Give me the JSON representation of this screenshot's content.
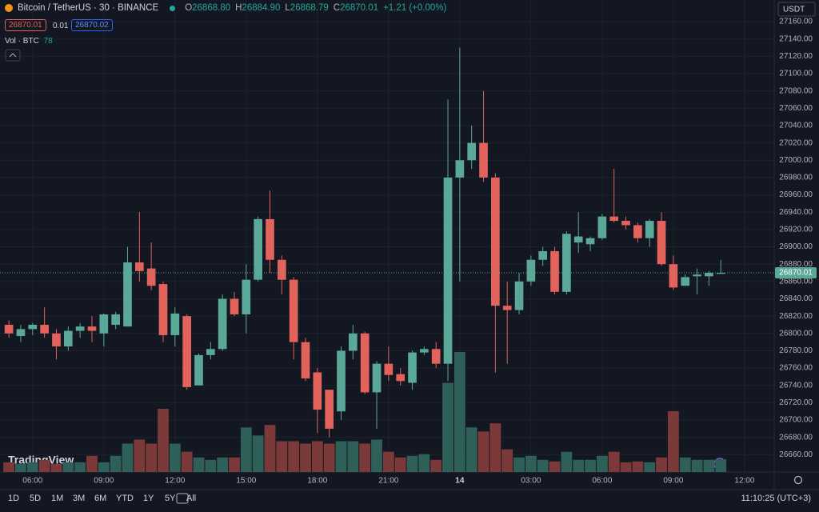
{
  "chart_data": {
    "type": "candlestick",
    "title": "Bitcoin / TetherUS · 30 · BINANCE",
    "legend": [
      {
        "key": "O",
        "value": "26868.80"
      },
      {
        "key": "H",
        "value": "26884.90"
      },
      {
        "key": "L",
        "value": "26868.79"
      },
      {
        "key": "C",
        "value": "26870.01"
      }
    ],
    "change": "+1.21 (+0.00%)",
    "bid": "26870.01",
    "spread": "0.01",
    "ask": "26870.02",
    "volume_label": "Vol · BTC",
    "volume_last": "78",
    "currency": "USDT",
    "price_label": "26870.01",
    "watermark": "TradingView",
    "ranges": [
      "1D",
      "5D",
      "1M",
      "3M",
      "6M",
      "YTD",
      "1Y",
      "5Y",
      "All"
    ],
    "clock": "11:10:25 (UTC+3)",
    "open": [
      26810,
      26797,
      26805,
      26810,
      26800,
      26785,
      26803,
      26808,
      26800,
      26810,
      26808,
      26882,
      26875,
      26857,
      26798,
      26820,
      26740,
      26775,
      26782,
      26840,
      26822,
      26862,
      26932,
      26885,
      26862,
      26790,
      26755,
      26735,
      26710,
      26780,
      26800,
      26732,
      26765,
      26753,
      26743,
      26778,
      26782,
      26765,
      26980,
      27000,
      27020,
      26980,
      26832,
      26827,
      26860,
      26885,
      26895,
      26848,
      26905,
      26903,
      26910,
      26935,
      26930,
      26925,
      26910,
      26930,
      26880,
      26855,
      26866,
      26866,
      26868.8
    ],
    "high": [
      26815,
      26810,
      26812,
      26830,
      26805,
      26808,
      26812,
      26820,
      26823,
      26825,
      26900,
      26940,
      26905,
      26860,
      26830,
      26822,
      26777,
      26790,
      26845,
      26848,
      26880,
      26935,
      26965,
      26890,
      26865,
      26795,
      26760,
      26735,
      26785,
      26810,
      26802,
      26768,
      26785,
      26760,
      26780,
      26785,
      26790,
      27070,
      27130,
      27040,
      27080,
      26985,
      26860,
      26870,
      26890,
      26900,
      26900,
      26918,
      26940,
      26912,
      26938,
      26990,
      26935,
      26928,
      26932,
      26940,
      26890,
      26868,
      26875,
      26872,
      26884.9
    ],
    "low": [
      26795,
      26790,
      26798,
      26795,
      26770,
      26780,
      26795,
      26790,
      26785,
      26805,
      26808,
      26860,
      26850,
      26790,
      26785,
      26735,
      26740,
      26770,
      26780,
      26820,
      26800,
      26860,
      26870,
      26845,
      26770,
      26745,
      26685,
      26680,
      26700,
      26770,
      26730,
      26690,
      26745,
      26740,
      26735,
      26775,
      26760,
      26745,
      26860,
      26990,
      26975,
      26755,
      26765,
      26822,
      26855,
      26878,
      26845,
      26845,
      26893,
      26895,
      26908,
      26928,
      26920,
      26905,
      26900,
      26878,
      26850,
      26855,
      26845,
      26855,
      26868.79
    ],
    "close": [
      26800,
      26805,
      26810,
      26800,
      26785,
      26803,
      26808,
      26803,
      26822,
      26822,
      26882,
      26872,
      26855,
      26798,
      26823,
      26738,
      26775,
      26782,
      26840,
      26822,
      26862,
      26932,
      26885,
      26862,
      26790,
      26748,
      26712,
      26690,
      26780,
      26800,
      26732,
      26765,
      26752,
      26745,
      26778,
      26782,
      26765,
      26980,
      27000,
      27020,
      26980,
      26832,
      26827,
      26860,
      26885,
      26895,
      26848,
      26915,
      26912,
      26910,
      26935,
      26930,
      26925,
      26910,
      26930,
      26880,
      26853,
      26865,
      26868,
      26870,
      26870.01
    ],
    "volume": [
      60,
      50,
      60,
      75,
      50,
      60,
      60,
      100,
      60,
      100,
      175,
      200,
      175,
      390,
      175,
      125,
      90,
      75,
      90,
      90,
      275,
      225,
      290,
      190,
      190,
      175,
      190,
      175,
      190,
      190,
      175,
      200,
      125,
      90,
      100,
      110,
      75,
      550,
      740,
      275,
      250,
      300,
      140,
      90,
      100,
      75,
      65,
      125,
      75,
      75,
      100,
      125,
      60,
      65,
      60,
      90,
      375,
      90,
      75,
      75,
      78
    ],
    "up_color": "#5aa897",
    "down_color": "#e2625c",
    "up_volume_color": "#2e5f59",
    "down_volume_color": "#7b3939",
    "xlim": [
      -0.75,
      64.5
    ],
    "xticks": [
      {
        "value": 2,
        "label": "06:00"
      },
      {
        "value": 8,
        "label": "09:00"
      },
      {
        "value": 14,
        "label": "12:00"
      },
      {
        "value": 20,
        "label": "15:00"
      },
      {
        "value": 26,
        "label": "18:00"
      },
      {
        "value": 32,
        "label": "21:00"
      },
      {
        "value": 38,
        "label": "14"
      },
      {
        "value": 44,
        "label": "03:00"
      },
      {
        "value": 50,
        "label": "06:00"
      },
      {
        "value": 56,
        "label": "09:00"
      },
      {
        "value": 62,
        "label": "12:00"
      }
    ],
    "ylim": [
      26640,
      27185
    ],
    "yticks": [
      {
        "value": 26660,
        "label": "26660.00"
      },
      {
        "value": 26680,
        "label": "26680.00"
      },
      {
        "value": 26700,
        "label": "26700.00"
      },
      {
        "value": 26720,
        "label": "26720.00"
      },
      {
        "value": 26740,
        "label": "26740.00"
      },
      {
        "value": 26760,
        "label": "26760.00"
      },
      {
        "value": 26780,
        "label": "26780.00"
      },
      {
        "value": 26800,
        "label": "26800.00"
      },
      {
        "value": 26820,
        "label": "26820.00"
      },
      {
        "value": 26840,
        "label": "26840.00"
      },
      {
        "value": 26860,
        "label": "26860.00"
      },
      {
        "value": 26880,
        "label": "26880.00"
      },
      {
        "value": 26900,
        "label": "26900.00"
      },
      {
        "value": 26920,
        "label": "26920.00"
      },
      {
        "value": 26940,
        "label": "26940.00"
      },
      {
        "value": 26960,
        "label": "26960.00"
      },
      {
        "value": 26980,
        "label": "26980.00"
      },
      {
        "value": 27000,
        "label": "27000.00"
      },
      {
        "value": 27020,
        "label": "27020.00"
      },
      {
        "value": 27040,
        "label": "27040.00"
      },
      {
        "value": 27060,
        "label": "27060.00"
      },
      {
        "value": 27080,
        "label": "27080.00"
      },
      {
        "value": 27100,
        "label": "27100.00"
      },
      {
        "value": 27120,
        "label": "27120.00"
      },
      {
        "value": 27140,
        "label": "27140.00"
      },
      {
        "value": 27160,
        "label": "27160.00"
      }
    ],
    "grid": true
  }
}
